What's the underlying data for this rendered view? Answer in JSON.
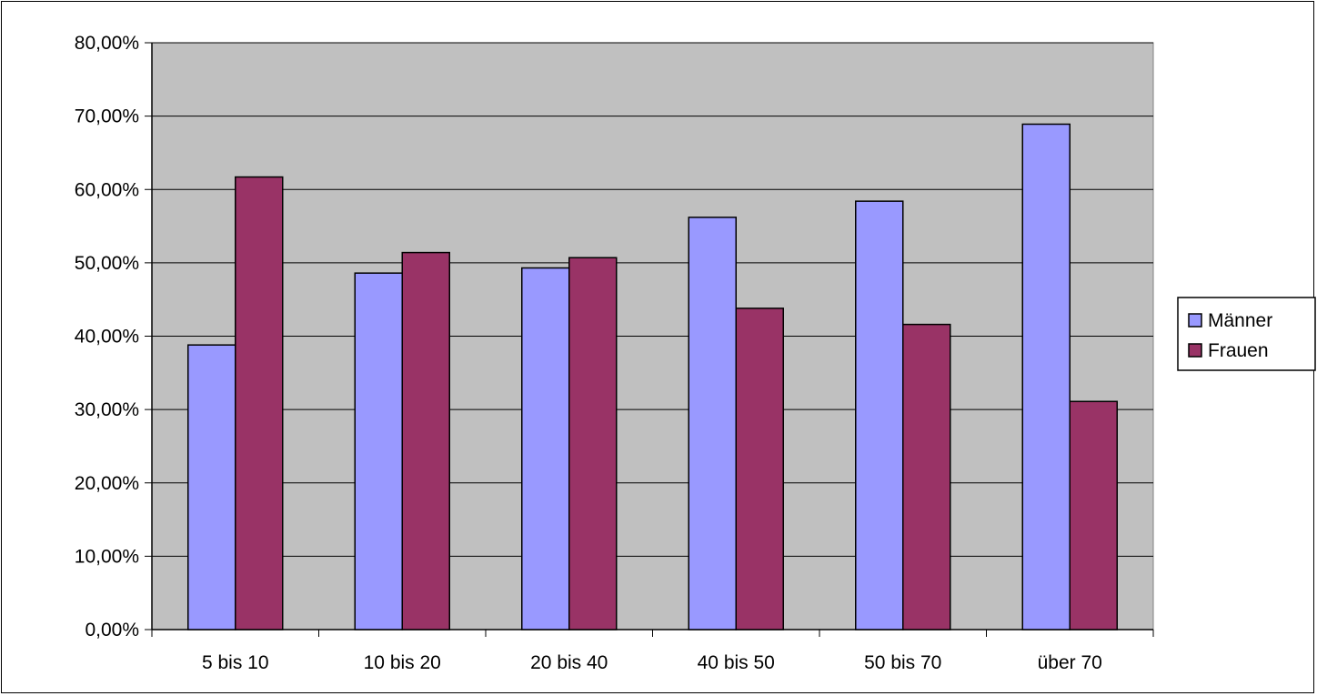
{
  "chart_data": {
    "type": "bar",
    "title": "",
    "xlabel": "",
    "ylabel": "",
    "categories": [
      "5 bis 10",
      "10 bis 20",
      "20 bis 40",
      "40 bis 50",
      "50 bis 70",
      "über 70"
    ],
    "series": [
      {
        "name": "Männer",
        "color": "#9999ff",
        "values": [
          38.8,
          48.6,
          49.3,
          56.2,
          58.4,
          68.9
        ]
      },
      {
        "name": "Frauen",
        "color": "#993366",
        "values": [
          61.7,
          51.4,
          50.7,
          43.8,
          41.6,
          31.1
        ]
      }
    ],
    "ylim": [
      0,
      80
    ],
    "yticks": [
      0,
      10,
      20,
      30,
      40,
      50,
      60,
      70,
      80
    ],
    "ytick_labels": [
      "0,00%",
      "10,00%",
      "20,00%",
      "30,00%",
      "40,00%",
      "50,00%",
      "60,00%",
      "70,00%",
      "80,00%"
    ],
    "plot_background": "#c0c0c0",
    "grid": true,
    "legend_position": "right"
  }
}
